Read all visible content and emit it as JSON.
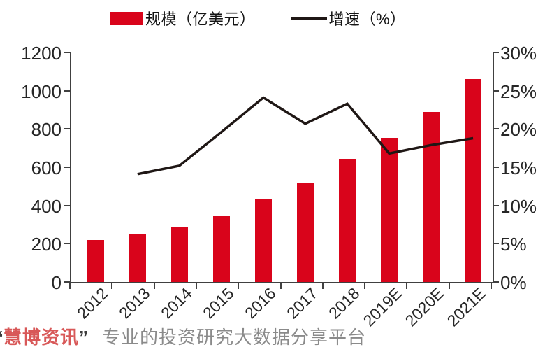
{
  "legend": [
    {
      "label": "规模（亿美元）",
      "type": "bar",
      "color": "#d9041b"
    },
    {
      "label": "增速（%）",
      "type": "line",
      "color": "#1f1715"
    }
  ],
  "watermark": {
    "open_quote": "“",
    "brand": "慧博资讯",
    "close_quote": "”",
    "tagline": "专业的投资研究大数据分享平台",
    "brand_color": "#d85858",
    "tagline_color": "#8a8a8a"
  },
  "chart_data": {
    "type": "bar+line combo",
    "title": "",
    "categories": [
      "2012",
      "2013",
      "2014",
      "2015",
      "2016",
      "2017",
      "2018",
      "2019E",
      "2020E",
      "2021E"
    ],
    "series": [
      {
        "name": "规模（亿美元）",
        "type": "bar",
        "axis": "left",
        "color": "#d9041b",
        "values": [
          220,
          250,
          290,
          345,
          430,
          520,
          645,
          755,
          890,
          1060
        ]
      },
      {
        "name": "增速（%）",
        "type": "line",
        "axis": "right",
        "color": "#1f1715",
        "values": [
          null,
          14.1,
          15.2,
          19.6,
          24.1,
          20.7,
          23.3,
          16.8,
          17.9,
          18.8
        ]
      }
    ],
    "left_axis": {
      "min": 0,
      "max": 1200,
      "step": 200,
      "tick_labels": [
        "0",
        "200",
        "400",
        "600",
        "800",
        "1000",
        "1200"
      ]
    },
    "right_axis": {
      "min": 0,
      "max": 30,
      "step": 5,
      "tick_labels": [
        "0%",
        "5%",
        "10%",
        "15%",
        "20%",
        "25%",
        "30%"
      ]
    },
    "grid": false,
    "legend_position": "top"
  }
}
